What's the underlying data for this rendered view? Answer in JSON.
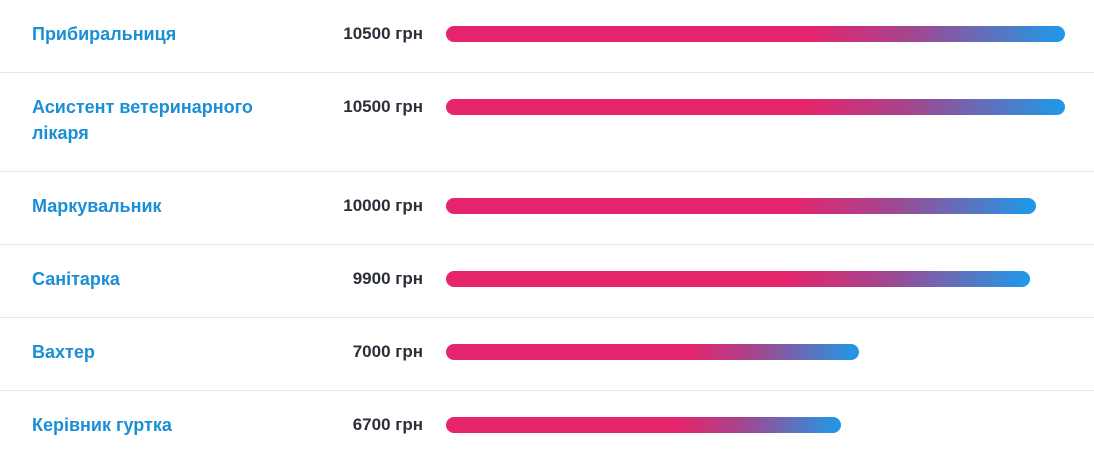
{
  "chart_data": {
    "type": "bar",
    "categories": [
      "Прибиральниця",
      "Асистент ветеринарного лікаря",
      "Маркувальник",
      "Санітарка",
      "Вахтер",
      "Керівник гуртка"
    ],
    "values": [
      10500,
      10500,
      10000,
      9900,
      7000,
      6700
    ],
    "value_labels": [
      "10500 грн",
      "10500 грн",
      "10000 грн",
      "9900 грн",
      "7000 грн",
      "6700 грн"
    ]
  }
}
